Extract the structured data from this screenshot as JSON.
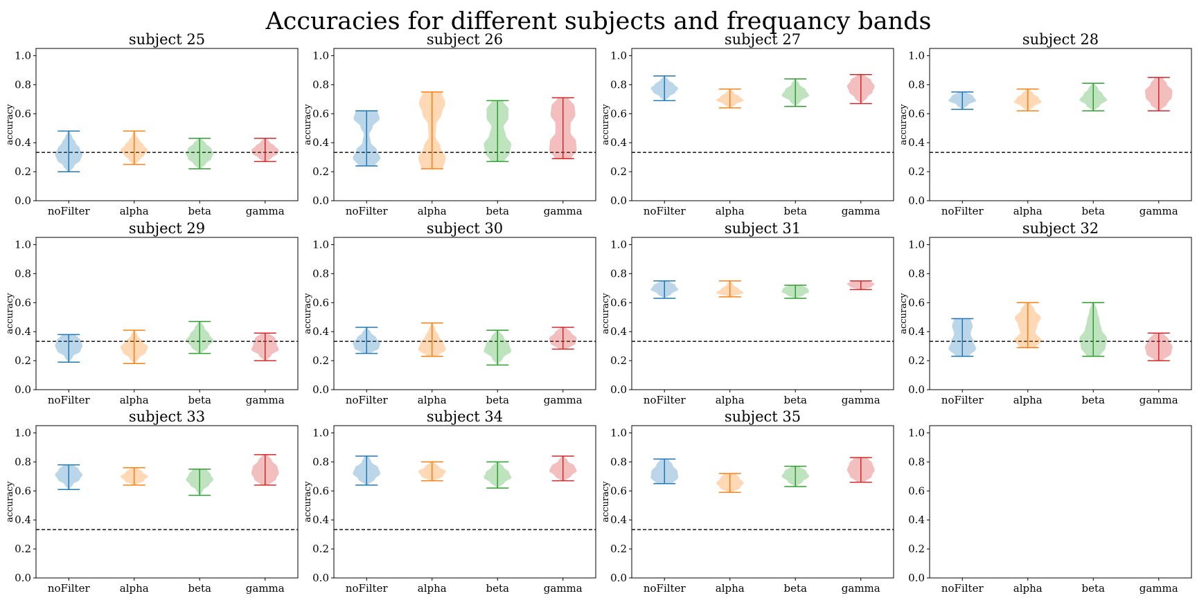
{
  "title": "Accuracies for different subjects and frequancy bands",
  "ylabel": "accuracy",
  "chance_level": 0.333,
  "colors": {
    "noFilter": "#1f77b4",
    "alpha": "#ff7f0e",
    "beta": "#2ca02c",
    "gamma": "#d62728",
    "chance_line": "#000000"
  },
  "chart_data": {
    "type": "violin",
    "grid": false,
    "categories": [
      "noFilter",
      "alpha",
      "beta",
      "gamma"
    ],
    "ylim": [
      0.0,
      1.05
    ],
    "yticks": [
      "0.0",
      "0.2",
      "0.4",
      "0.6",
      "0.8",
      "1.0"
    ],
    "subplots": [
      {
        "title": "subject 25",
        "series": [
          {
            "category": "noFilter",
            "min": 0.2,
            "max": 0.48,
            "peak": 0.31,
            "profile": [
              0.1,
              0.4,
              0.85,
              1.0,
              0.8,
              0.5,
              0.25,
              0.05
            ]
          },
          {
            "category": "alpha",
            "min": 0.25,
            "max": 0.48,
            "peak": 0.36,
            "profile": [
              0.1,
              0.4,
              0.75,
              1.0,
              0.7,
              0.4,
              0.15,
              0.05
            ]
          },
          {
            "category": "beta",
            "min": 0.22,
            "max": 0.43,
            "peak": 0.32,
            "profile": [
              0.1,
              0.45,
              0.85,
              1.0,
              0.85,
              0.45,
              0.1
            ]
          },
          {
            "category": "gamma",
            "min": 0.27,
            "max": 0.43,
            "peak": 0.36,
            "profile": [
              0.1,
              0.5,
              0.9,
              1.0,
              0.7,
              0.35,
              0.1
            ]
          }
        ]
      },
      {
        "title": "subject 26",
        "series": [
          {
            "category": "noFilter",
            "min": 0.24,
            "max": 0.62,
            "peak": 0.32,
            "profile": [
              0.6,
              1.0,
              0.75,
              0.3,
              0.2,
              0.45,
              0.95,
              0.8
            ]
          },
          {
            "category": "alpha",
            "min": 0.22,
            "max": 0.75,
            "peak": 0.3,
            "profile": [
              0.8,
              1.0,
              0.6,
              0.25,
              0.3,
              0.7,
              0.95,
              0.7
            ]
          },
          {
            "category": "beta",
            "min": 0.27,
            "max": 0.69,
            "peak": 0.38,
            "profile": [
              0.5,
              0.9,
              1.0,
              0.6,
              0.45,
              0.8,
              0.8,
              0.4
            ]
          },
          {
            "category": "gamma",
            "min": 0.29,
            "max": 0.71,
            "peak": 0.38,
            "profile": [
              0.6,
              1.0,
              0.95,
              0.55,
              0.55,
              0.9,
              0.85,
              0.4
            ]
          }
        ]
      },
      {
        "title": "subject 27",
        "series": [
          {
            "category": "noFilter",
            "min": 0.69,
            "max": 0.86,
            "peak": 0.78,
            "profile": [
              0.05,
              0.35,
              0.8,
              1.0,
              0.7,
              0.3,
              0.05
            ]
          },
          {
            "category": "alpha",
            "min": 0.64,
            "max": 0.77,
            "peak": 0.71,
            "profile": [
              0.05,
              0.45,
              1.0,
              0.7,
              0.3,
              0.05
            ]
          },
          {
            "category": "beta",
            "min": 0.65,
            "max": 0.84,
            "peak": 0.74,
            "profile": [
              0.05,
              0.4,
              1.0,
              0.75,
              0.3,
              0.05
            ]
          },
          {
            "category": "gamma",
            "min": 0.67,
            "max": 0.87,
            "peak": 0.79,
            "profile": [
              0.05,
              0.45,
              0.85,
              1.0,
              0.75,
              0.25
            ]
          }
        ]
      },
      {
        "title": "subject 28",
        "series": [
          {
            "category": "noFilter",
            "min": 0.63,
            "max": 0.75,
            "peak": 0.71,
            "profile": [
              0.05,
              0.4,
              1.0,
              0.8,
              0.3
            ]
          },
          {
            "category": "alpha",
            "min": 0.62,
            "max": 0.77,
            "peak": 0.71,
            "profile": [
              0.05,
              0.45,
              1.0,
              0.8,
              0.4,
              0.1
            ]
          },
          {
            "category": "beta",
            "min": 0.62,
            "max": 0.81,
            "peak": 0.7,
            "profile": [
              0.05,
              0.5,
              1.0,
              0.7,
              0.35,
              0.1
            ]
          },
          {
            "category": "gamma",
            "min": 0.62,
            "max": 0.85,
            "peak": 0.73,
            "profile": [
              0.1,
              0.6,
              0.95,
              1.0,
              0.6,
              0.3
            ]
          }
        ]
      },
      {
        "title": "subject 29",
        "series": [
          {
            "category": "noFilter",
            "min": 0.19,
            "max": 0.38,
            "peak": 0.31,
            "profile": [
              0.05,
              0.3,
              0.85,
              1.0,
              0.85,
              0.5
            ]
          },
          {
            "category": "alpha",
            "min": 0.18,
            "max": 0.41,
            "peak": 0.3,
            "profile": [
              0.05,
              0.35,
              0.85,
              1.0,
              0.6,
              0.25,
              0.05
            ]
          },
          {
            "category": "beta",
            "min": 0.25,
            "max": 0.47,
            "peak": 0.33,
            "profile": [
              0.1,
              0.6,
              1.0,
              0.7,
              0.35,
              0.1
            ]
          },
          {
            "category": "gamma",
            "min": 0.2,
            "max": 0.39,
            "peak": 0.3,
            "profile": [
              0.1,
              0.45,
              1.0,
              0.85,
              0.75,
              0.3
            ]
          }
        ]
      },
      {
        "title": "subject 30",
        "series": [
          {
            "category": "noFilter",
            "min": 0.25,
            "max": 0.43,
            "peak": 0.33,
            "profile": [
              0.3,
              0.9,
              1.0,
              0.7,
              0.3,
              0.05
            ]
          },
          {
            "category": "alpha",
            "min": 0.23,
            "max": 0.46,
            "peak": 0.3,
            "profile": [
              0.4,
              1.0,
              0.85,
              0.5,
              0.25,
              0.05
            ]
          },
          {
            "category": "beta",
            "min": 0.17,
            "max": 0.41,
            "peak": 0.3,
            "profile": [
              0.05,
              0.4,
              1.0,
              0.85,
              0.45,
              0.1
            ]
          },
          {
            "category": "gamma",
            "min": 0.28,
            "max": 0.43,
            "peak": 0.35,
            "profile": [
              0.3,
              0.9,
              1.0,
              0.6,
              0.2
            ]
          }
        ]
      },
      {
        "title": "subject 31",
        "series": [
          {
            "category": "noFilter",
            "min": 0.63,
            "max": 0.75,
            "peak": 0.7,
            "profile": [
              0.05,
              0.5,
              1.0,
              0.8,
              0.3
            ]
          },
          {
            "category": "alpha",
            "min": 0.64,
            "max": 0.75,
            "peak": 0.68,
            "profile": [
              0.1,
              1.0,
              0.65,
              0.25,
              0.05
            ]
          },
          {
            "category": "beta",
            "min": 0.63,
            "max": 0.72,
            "peak": 0.69,
            "profile": [
              0.1,
              0.6,
              1.0,
              0.9,
              0.5
            ]
          },
          {
            "category": "gamma",
            "min": 0.69,
            "max": 0.75,
            "peak": 0.73,
            "profile": [
              0.2,
              0.8,
              1.0,
              0.6
            ]
          }
        ]
      },
      {
        "title": "subject 32",
        "series": [
          {
            "category": "noFilter",
            "min": 0.23,
            "max": 0.49,
            "peak": 0.34,
            "profile": [
              0.5,
              1.0,
              0.8,
              0.6,
              0.75,
              0.6
            ]
          },
          {
            "category": "alpha",
            "min": 0.29,
            "max": 0.6,
            "peak": 0.36,
            "profile": [
              0.6,
              1.0,
              0.55,
              0.7,
              0.95,
              0.5,
              0.2
            ]
          },
          {
            "category": "beta",
            "min": 0.23,
            "max": 0.6,
            "peak": 0.38,
            "profile": [
              0.5,
              0.9,
              1.0,
              0.6,
              0.45,
              0.3,
              0.1
            ]
          },
          {
            "category": "gamma",
            "min": 0.2,
            "max": 0.39,
            "peak": 0.3,
            "profile": [
              0.3,
              0.9,
              1.0,
              0.75,
              0.35
            ]
          }
        ]
      },
      {
        "title": "subject 33",
        "series": [
          {
            "category": "noFilter",
            "min": 0.61,
            "max": 0.78,
            "peak": 0.72,
            "profile": [
              0.05,
              0.3,
              0.8,
              1.0,
              0.75,
              0.4
            ]
          },
          {
            "category": "alpha",
            "min": 0.64,
            "max": 0.76,
            "peak": 0.69,
            "profile": [
              0.1,
              0.7,
              1.0,
              0.6,
              0.25
            ]
          },
          {
            "category": "beta",
            "min": 0.57,
            "max": 0.75,
            "peak": 0.69,
            "profile": [
              0.05,
              0.25,
              0.7,
              1.0,
              0.8,
              0.5
            ]
          },
          {
            "category": "gamma",
            "min": 0.64,
            "max": 0.85,
            "peak": 0.74,
            "profile": [
              0.3,
              0.8,
              1.0,
              0.9,
              0.5,
              0.2
            ]
          }
        ]
      },
      {
        "title": "subject 34",
        "series": [
          {
            "category": "noFilter",
            "min": 0.64,
            "max": 0.84,
            "peak": 0.73,
            "profile": [
              0.1,
              0.6,
              1.0,
              0.85,
              0.35,
              0.15
            ]
          },
          {
            "category": "alpha",
            "min": 0.67,
            "max": 0.8,
            "peak": 0.73,
            "profile": [
              0.2,
              0.8,
              1.0,
              0.5,
              0.15
            ]
          },
          {
            "category": "beta",
            "min": 0.62,
            "max": 0.8,
            "peak": 0.72,
            "profile": [
              0.05,
              0.5,
              1.0,
              0.85,
              0.45,
              0.1
            ]
          },
          {
            "category": "gamma",
            "min": 0.67,
            "max": 0.84,
            "peak": 0.76,
            "profile": [
              0.15,
              0.6,
              1.0,
              0.85,
              0.35,
              0.1
            ]
          }
        ]
      },
      {
        "title": "subject 35",
        "series": [
          {
            "category": "noFilter",
            "min": 0.65,
            "max": 0.82,
            "peak": 0.73,
            "profile": [
              0.6,
              1.0,
              0.95,
              0.6,
              0.3
            ]
          },
          {
            "category": "alpha",
            "min": 0.59,
            "max": 0.72,
            "peak": 0.66,
            "profile": [
              0.2,
              0.75,
              1.0,
              0.7,
              0.45
            ]
          },
          {
            "category": "beta",
            "min": 0.63,
            "max": 0.77,
            "peak": 0.7,
            "profile": [
              0.1,
              0.55,
              1.0,
              0.8,
              0.3
            ]
          },
          {
            "category": "gamma",
            "min": 0.66,
            "max": 0.83,
            "peak": 0.75,
            "profile": [
              0.3,
              0.8,
              1.0,
              0.85,
              0.5
            ]
          }
        ]
      },
      {
        "title": "",
        "series": []
      }
    ]
  }
}
